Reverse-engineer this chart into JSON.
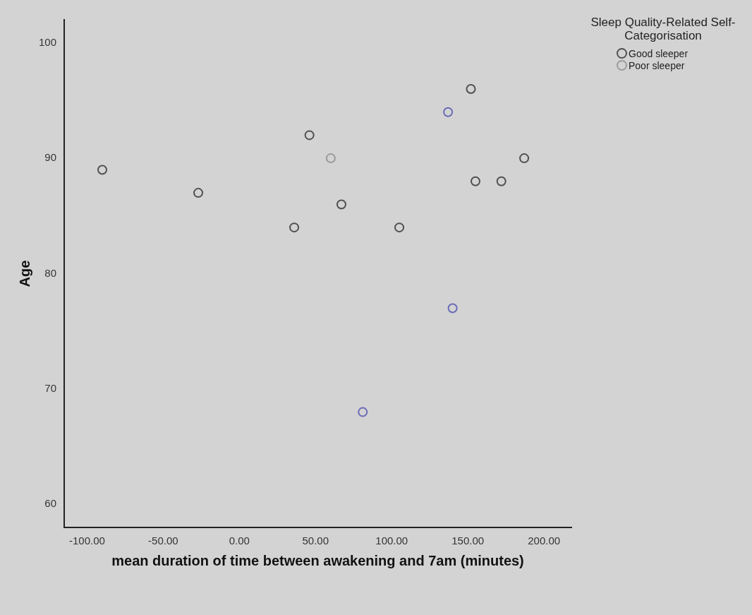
{
  "chart_data": {
    "type": "scatter",
    "xlabel": "mean duration of time between awakening and 7am (minutes)",
    "ylabel": "Age",
    "legend_title": "Sleep Quality-Related Self-Categorisation",
    "legend": "top right",
    "marker": "circle",
    "grid": false,
    "xlim": [
      -115,
      218
    ],
    "ylim": [
      58,
      102
    ],
    "xticks": [
      {
        "value": -100,
        "label": "-100.00"
      },
      {
        "value": -50,
        "label": "-50.00"
      },
      {
        "value": 0,
        "label": "0.00"
      },
      {
        "value": 50,
        "label": "50.00"
      },
      {
        "value": 100,
        "label": "100.00"
      },
      {
        "value": 150,
        "label": "150.00"
      },
      {
        "value": 200,
        "label": "200.00"
      }
    ],
    "yticks": [
      60,
      70,
      80,
      90,
      100
    ],
    "series": [
      {
        "name": "Good sleeper",
        "color": "#505050",
        "x": [
          -90,
          -27,
          36,
          46,
          67,
          105,
          152,
          155,
          172,
          187
        ],
        "values": [
          89,
          87,
          84,
          92,
          86,
          84,
          96,
          88,
          88,
          90
        ]
      },
      {
        "name": "Poor sleeper",
        "color": "#9a9a9a",
        "x": [
          60
        ],
        "values": [
          90
        ]
      },
      {
        "color": "#6a6ab8",
        "x": [
          137,
          140,
          81
        ],
        "values": [
          94,
          77,
          68
        ]
      }
    ]
  }
}
